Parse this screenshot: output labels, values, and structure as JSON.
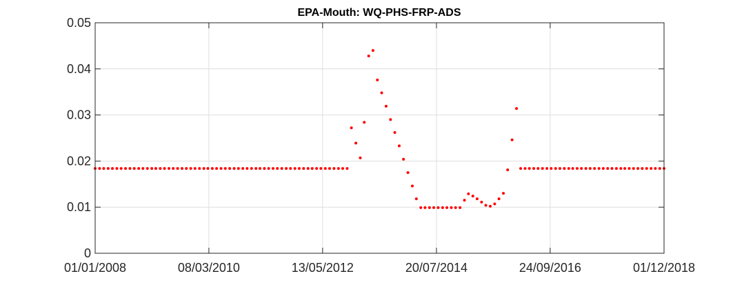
{
  "chart_data": {
    "type": "scatter",
    "title": "EPA-Mouth: WQ-PHS-FRP-ADS",
    "xlabel": "",
    "ylabel": "",
    "x_scale": "date",
    "xlim": [
      "2008-01-01",
      "2018-12-01"
    ],
    "ylim": [
      0,
      0.05
    ],
    "xticks": [
      "01/01/2008",
      "08/03/2010",
      "13/05/2012",
      "20/07/2014",
      "24/09/2016",
      "01/12/2018"
    ],
    "yticks": [
      "0",
      "0.01",
      "0.02",
      "0.03",
      "0.04",
      "0.05"
    ],
    "grid": true,
    "marker_color": "#ff0000",
    "series": [
      {
        "x": [
          "2008-01-01",
          "2008-02-01",
          "2008-03-01",
          "2008-04-01",
          "2008-05-01",
          "2008-06-01",
          "2008-07-01",
          "2008-08-01",
          "2008-09-01",
          "2008-10-01",
          "2008-11-01",
          "2008-12-01",
          "2009-01-01",
          "2009-02-01",
          "2009-03-01",
          "2009-04-01",
          "2009-05-01",
          "2009-06-01",
          "2009-07-01",
          "2009-08-01",
          "2009-09-01",
          "2009-10-01",
          "2009-11-01",
          "2009-12-01",
          "2010-01-01",
          "2010-02-01",
          "2010-03-01",
          "2010-04-01",
          "2010-05-01",
          "2010-06-01",
          "2010-07-01",
          "2010-08-01",
          "2010-09-01",
          "2010-10-01",
          "2010-11-01",
          "2010-12-01",
          "2011-01-01",
          "2011-02-01",
          "2011-03-01",
          "2011-04-01",
          "2011-05-01",
          "2011-06-01",
          "2011-07-01",
          "2011-08-01",
          "2011-09-01",
          "2011-10-01",
          "2011-11-01",
          "2011-12-01",
          "2012-01-01",
          "2012-02-01",
          "2012-03-01",
          "2012-04-01",
          "2012-05-01",
          "2012-06-01",
          "2012-07-01",
          "2012-08-01",
          "2012-09-01",
          "2012-10-01",
          "2012-11-01",
          "2012-12-01",
          "2013-01-01",
          "2013-02-01",
          "2013-03-01",
          "2013-04-01",
          "2013-05-01",
          "2013-06-01",
          "2013-07-01",
          "2013-08-01",
          "2013-09-01",
          "2013-10-01",
          "2013-11-01",
          "2013-12-01",
          "2014-01-01",
          "2014-02-01",
          "2014-03-01",
          "2014-04-01",
          "2014-05-01",
          "2014-06-01",
          "2014-07-01",
          "2014-08-01",
          "2014-09-01",
          "2014-10-01",
          "2014-11-01",
          "2014-12-01",
          "2015-01-01",
          "2015-02-01",
          "2015-03-01",
          "2015-04-01",
          "2015-05-01",
          "2015-06-01",
          "2015-07-01",
          "2015-08-01",
          "2015-09-01",
          "2015-10-01",
          "2015-11-01",
          "2015-12-01",
          "2016-01-01",
          "2016-02-01",
          "2016-03-01",
          "2016-04-01",
          "2016-05-01",
          "2016-06-01",
          "2016-07-01",
          "2016-08-01",
          "2016-09-01",
          "2016-10-01",
          "2016-11-01",
          "2016-12-01",
          "2017-01-01",
          "2017-02-01",
          "2017-03-01",
          "2017-04-01",
          "2017-05-01",
          "2017-06-01",
          "2017-07-01",
          "2017-08-01",
          "2017-09-01",
          "2017-10-01",
          "2017-11-01",
          "2017-12-01",
          "2018-01-01",
          "2018-02-01",
          "2018-03-01",
          "2018-04-01",
          "2018-05-01",
          "2018-06-01",
          "2018-07-01",
          "2018-08-01",
          "2018-09-01",
          "2018-10-01",
          "2018-11-01",
          "2018-12-01"
        ],
        "y": [
          0.0184,
          0.0184,
          0.0184,
          0.0184,
          0.0184,
          0.0184,
          0.0184,
          0.0184,
          0.0184,
          0.0184,
          0.0184,
          0.0184,
          0.0184,
          0.0184,
          0.0184,
          0.0184,
          0.0184,
          0.0184,
          0.0184,
          0.0184,
          0.0184,
          0.0184,
          0.0184,
          0.0184,
          0.0184,
          0.0184,
          0.0184,
          0.0184,
          0.0184,
          0.0184,
          0.0184,
          0.0184,
          0.0184,
          0.0184,
          0.0184,
          0.0184,
          0.0184,
          0.0184,
          0.0184,
          0.0184,
          0.0184,
          0.0184,
          0.0184,
          0.0184,
          0.0184,
          0.0184,
          0.0184,
          0.0184,
          0.0184,
          0.0184,
          0.0184,
          0.0184,
          0.0184,
          0.0184,
          0.0184,
          0.0184,
          0.0184,
          0.0184,
          0.0184,
          0.0184,
          0.0184,
          0.0184,
          0.0184,
          0.0184,
          0.0184,
          0.0184,
          0.0184,
          0.0184,
          0.0184,
          0.0184,
          0.0184,
          0.0184,
          0.0184,
          0.0184,
          0.0184,
          0.0184,
          0.0184,
          0.0184,
          0.0184,
          0.0184,
          0.0184,
          0.0184,
          0.0184,
          0.0184,
          0.0184,
          0.0184,
          0.0184,
          0.0184,
          0.0184,
          0.0184,
          0.0184,
          0.0184,
          0.0184,
          0.0184,
          0.0184,
          0.0184,
          0.0184,
          0.0184,
          0.0184,
          0.0184,
          0.0184,
          0.0184,
          0.0184,
          0.0184,
          0.0184,
          0.0184,
          0.0184,
          0.0184,
          0.0184,
          0.0184,
          0.0184,
          0.0184,
          0.0184,
          0.0184,
          0.0184,
          0.0184,
          0.0184,
          0.0184,
          0.0184,
          0.0184,
          0.0184,
          0.0184,
          0.0184,
          0.0184,
          0.0184,
          0.0184,
          0.0184,
          0.0184,
          0.0184,
          0.0184,
          0.0184,
          0.0184
        ]
      }
    ],
    "episode": {
      "x": [
        "2012-12-01",
        "2013-01-01",
        "2013-02-01",
        "2013-03-01",
        "2013-04-01",
        "2013-05-01",
        "2013-06-01",
        "2013-07-01",
        "2013-08-01",
        "2013-09-01",
        "2013-10-01",
        "2013-11-01",
        "2013-12-01",
        "2014-01-01",
        "2014-02-01",
        "2014-03-01",
        "2014-04-01",
        "2014-05-01",
        "2014-06-01",
        "2014-07-01",
        "2014-08-01",
        "2014-09-01",
        "2014-10-01",
        "2014-11-01",
        "2014-12-01",
        "2015-01-01",
        "2015-02-01",
        "2015-03-01",
        "2015-04-01",
        "2015-05-01",
        "2015-06-01",
        "2015-07-01",
        "2015-08-01",
        "2015-09-01",
        "2015-10-01",
        "2015-11-01",
        "2015-12-01",
        "2016-01-01",
        "2016-02-01"
      ],
      "y": [
        0.0272,
        0.0239,
        0.0207,
        0.0284,
        0.0428,
        0.044,
        0.0376,
        0.0348,
        0.0319,
        0.029,
        0.0262,
        0.0233,
        0.0204,
        0.0175,
        0.0146,
        0.0118,
        0.0099,
        0.0099,
        0.0099,
        0.0099,
        0.0099,
        0.0099,
        0.0099,
        0.0099,
        0.0099,
        0.0099,
        0.0115,
        0.0129,
        0.0124,
        0.0118,
        0.0111,
        0.0104,
        0.0102,
        0.0107,
        0.0118,
        0.013,
        0.0181,
        0.0246,
        0.0314
      ]
    }
  }
}
